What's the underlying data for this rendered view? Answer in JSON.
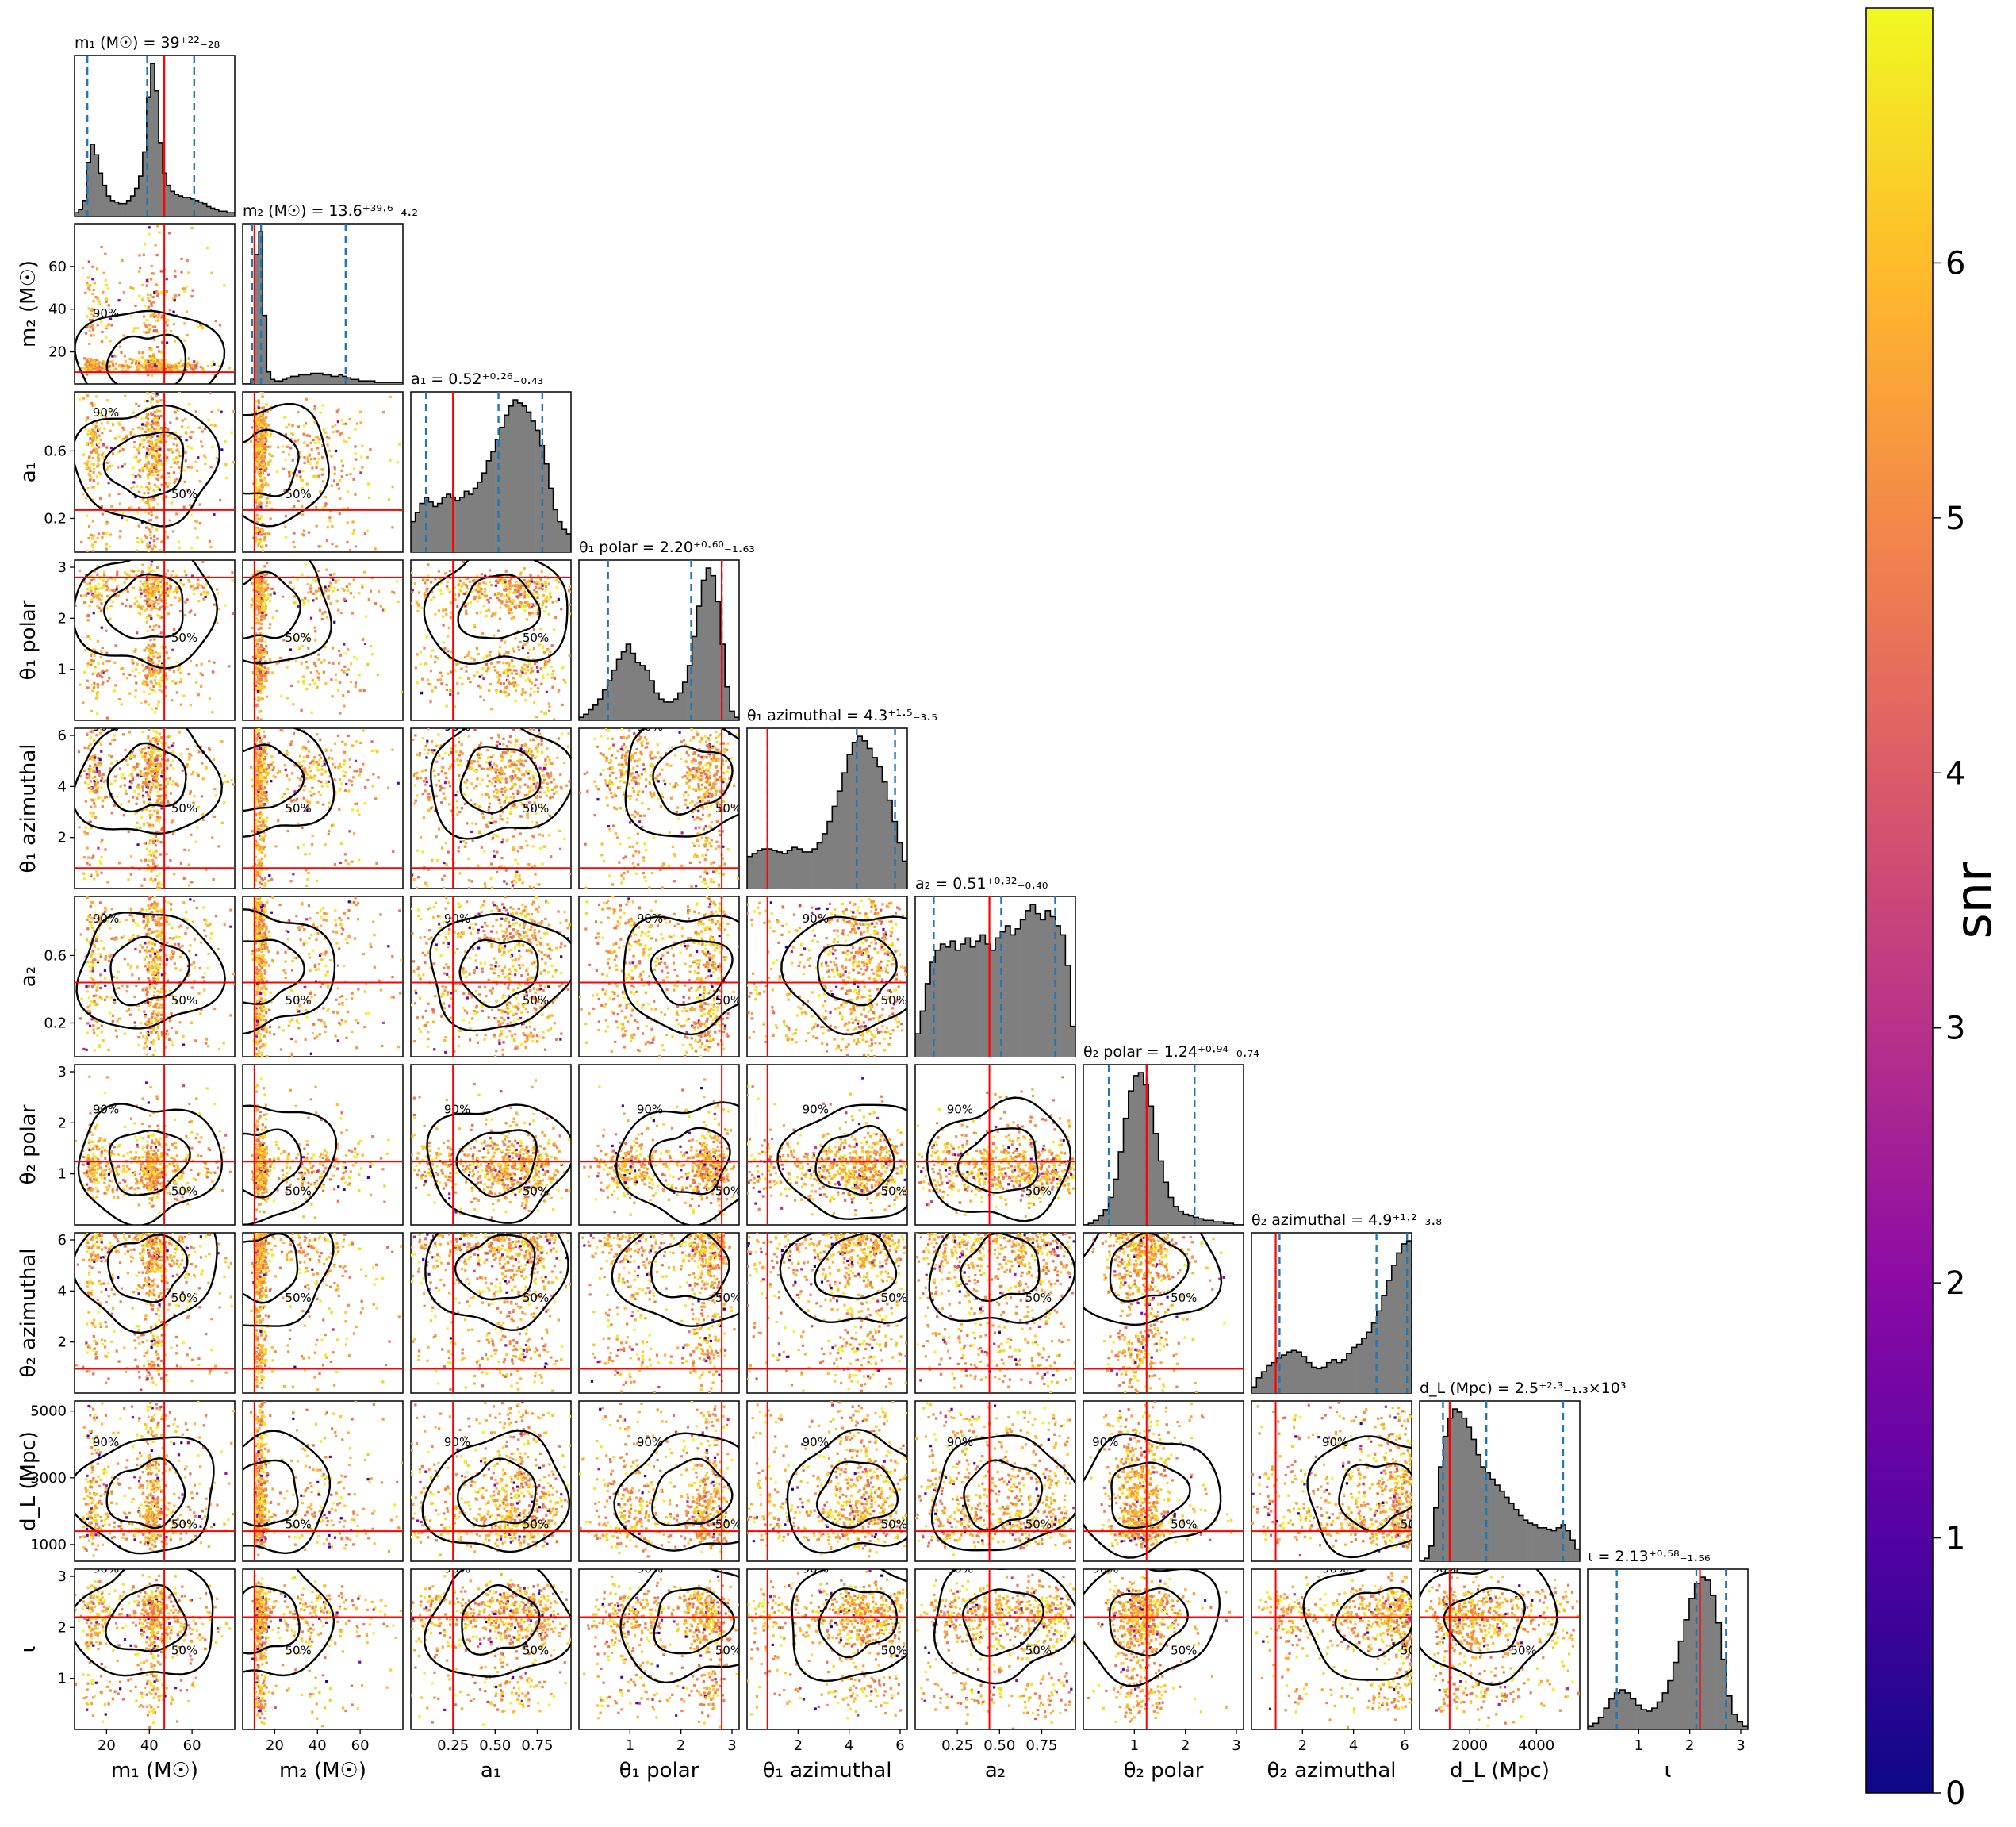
{
  "chart_data": {
    "type": "corner",
    "colorbar": {
      "label": "snr",
      "range": [
        0,
        7
      ],
      "ticks": [
        "0",
        "1",
        "2",
        "3",
        "4",
        "5",
        "6"
      ],
      "colormap": [
        "#0d0887",
        "#5302a3",
        "#8b0aa5",
        "#b83289",
        "#db5c68",
        "#f48849",
        "#febc2a",
        "#f0f921"
      ]
    },
    "colors": {
      "histogram": "#7f7f7f",
      "truth": "#ff0000",
      "credible_interval": "#1f77b4",
      "contour": "#000000"
    },
    "contour_labels": [
      "50%",
      "90%"
    ],
    "parameters": [
      {
        "name": "m1",
        "axis_label": "m₁ (M☉)",
        "title": "m₁ (M☉) = 39⁺²²₋₂₈",
        "range": [
          5,
          80
        ],
        "ticks": [
          20,
          40,
          60
        ],
        "tick_labels": [
          "20",
          "40",
          "60"
        ],
        "truth": 47,
        "median": 39,
        "lower": 11,
        "upper": 61
      },
      {
        "name": "m2",
        "axis_label": "m₂ (M☉)",
        "title": "m₂ (M☉) = 13.6⁺³⁹·⁶₋₄.₂",
        "range": [
          5,
          80
        ],
        "ticks": [
          20,
          40,
          60
        ],
        "tick_labels": [
          "20",
          "40",
          "60"
        ],
        "truth": 10.5,
        "median": 13.6,
        "lower": 9.4,
        "upper": 53.2
      },
      {
        "name": "a1",
        "axis_label": "a₁",
        "title": "a₁ = 0.52⁺⁰·²⁶₋₀.₄₃",
        "range": [
          0,
          0.95
        ],
        "ticks": [
          0.25,
          0.5,
          0.75
        ],
        "tick_labels": [
          "0.25",
          "0.50",
          "0.75"
        ],
        "y_ticks": [
          0.2,
          0.6
        ],
        "y_tick_labels": [
          "0.2",
          "0.6"
        ],
        "truth": 0.25,
        "median": 0.52,
        "lower": 0.09,
        "upper": 0.78
      },
      {
        "name": "theta1_polar",
        "axis_label": "θ₁ polar",
        "title": "θ₁ polar = 2.20⁺⁰·⁶⁰₋₁.₆₃",
        "range": [
          0,
          3.14
        ],
        "ticks": [
          1,
          2,
          3
        ],
        "tick_labels": [
          "1",
          "2",
          "3"
        ],
        "truth": 2.8,
        "median": 2.2,
        "lower": 0.57,
        "upper": 2.8
      },
      {
        "name": "theta1_azimuthal",
        "axis_label": "θ₁ azimuthal",
        "title": "θ₁ azimuthal = 4.3⁺¹·⁵₋₃.₅",
        "range": [
          0,
          6.28
        ],
        "ticks": [
          2,
          4,
          6
        ],
        "tick_labels": [
          "2",
          "4",
          "6"
        ],
        "truth": 0.8,
        "median": 4.3,
        "lower": 0.8,
        "upper": 5.8
      },
      {
        "name": "a2",
        "axis_label": "a₂",
        "title": "a₂ = 0.51⁺⁰·³²₋₀.₄₀",
        "range": [
          0,
          0.95
        ],
        "ticks": [
          0.25,
          0.5,
          0.75
        ],
        "tick_labels": [
          "0.25",
          "0.50",
          "0.75"
        ],
        "y_ticks": [
          0.2,
          0.6
        ],
        "y_tick_labels": [
          "0.2",
          "0.6"
        ],
        "truth": 0.44,
        "median": 0.51,
        "lower": 0.11,
        "upper": 0.83
      },
      {
        "name": "theta2_polar",
        "axis_label": "θ₂ polar",
        "title": "θ₂ polar = 1.24⁺⁰·⁹⁴₋₀.₇₄",
        "range": [
          0,
          3.14
        ],
        "ticks": [
          1,
          2,
          3
        ],
        "tick_labels": [
          "1",
          "2",
          "3"
        ],
        "truth": 1.24,
        "median": 1.24,
        "lower": 0.5,
        "upper": 2.18
      },
      {
        "name": "theta2_azimuthal",
        "axis_label": "θ₂ azimuthal",
        "title": "θ₂ azimuthal = 4.9⁺¹·²₋₃.₈",
        "range": [
          0,
          6.28
        ],
        "ticks": [
          2,
          4,
          6
        ],
        "tick_labels": [
          "2",
          "4",
          "6"
        ],
        "truth": 0.95,
        "median": 4.9,
        "lower": 1.1,
        "upper": 6.1
      },
      {
        "name": "dL",
        "axis_label": "d_L (Mpc)",
        "title": "d_L (Mpc) = 2.5⁺²·³₋₁.₃×10³",
        "range": [
          500,
          5300
        ],
        "ticks": [
          2000,
          4000
        ],
        "tick_labels": [
          "2000",
          "4000"
        ],
        "y_ticks": [
          1000,
          3000,
          5000
        ],
        "y_tick_labels": [
          "1000",
          "3000",
          "5000"
        ],
        "truth": 1400,
        "median": 2500,
        "lower": 1200,
        "upper": 4800
      },
      {
        "name": "iota",
        "axis_label": "ι",
        "title": "ι = 2.13⁺⁰·⁵⁸₋₁.₅₆",
        "range": [
          0,
          3.14
        ],
        "ticks": [
          1,
          2,
          3
        ],
        "tick_labels": [
          "1",
          "2",
          "3"
        ],
        "truth": 2.2,
        "median": 2.13,
        "lower": 0.57,
        "upper": 2.71
      }
    ],
    "histograms": [
      [
        0.02,
        0.04,
        0.1,
        0.35,
        0.47,
        0.4,
        0.28,
        0.2,
        0.13,
        0.1,
        0.09,
        0.08,
        0.08,
        0.1,
        0.13,
        0.18,
        0.26,
        0.42,
        0.78,
        1.0,
        0.82,
        0.48,
        0.28,
        0.2,
        0.16,
        0.14,
        0.13,
        0.12,
        0.12,
        0.11,
        0.1,
        0.09,
        0.08,
        0.06,
        0.05,
        0.04,
        0.03,
        0.03,
        0.02,
        0.02
      ],
      [
        0.0,
        0.0,
        0.03,
        0.85,
        1.0,
        0.45,
        0.08,
        0.03,
        0.02,
        0.02,
        0.03,
        0.04,
        0.05,
        0.05,
        0.06,
        0.06,
        0.06,
        0.07,
        0.07,
        0.07,
        0.06,
        0.06,
        0.05,
        0.05,
        0.06,
        0.05,
        0.04,
        0.03,
        0.03,
        0.02,
        0.02,
        0.02,
        0.02,
        0.01,
        0.01,
        0.01,
        0.01,
        0.01,
        0.01,
        0.01
      ],
      [
        0.2,
        0.26,
        0.32,
        0.36,
        0.33,
        0.3,
        0.32,
        0.36,
        0.38,
        0.36,
        0.34,
        0.36,
        0.4,
        0.38,
        0.42,
        0.46,
        0.52,
        0.6,
        0.66,
        0.74,
        0.82,
        0.9,
        0.96,
        1.0,
        0.98,
        0.96,
        0.92,
        0.86,
        0.8,
        0.7,
        0.58,
        0.42,
        0.28,
        0.2,
        0.15,
        0.12
      ],
      [
        0.02,
        0.04,
        0.07,
        0.1,
        0.14,
        0.2,
        0.26,
        0.33,
        0.4,
        0.45,
        0.5,
        0.44,
        0.38,
        0.36,
        0.33,
        0.26,
        0.18,
        0.14,
        0.12,
        0.12,
        0.14,
        0.18,
        0.25,
        0.36,
        0.55,
        0.75,
        0.92,
        1.0,
        0.95,
        0.78,
        0.5,
        0.22,
        0.06,
        0.02
      ],
      [
        0.21,
        0.23,
        0.25,
        0.26,
        0.26,
        0.25,
        0.24,
        0.23,
        0.25,
        0.27,
        0.26,
        0.24,
        0.24,
        0.26,
        0.3,
        0.36,
        0.44,
        0.54,
        0.64,
        0.76,
        0.88,
        0.96,
        1.0,
        0.97,
        0.92,
        0.86,
        0.8,
        0.7,
        0.58,
        0.44,
        0.3,
        0.18
      ],
      [
        0.15,
        0.3,
        0.48,
        0.62,
        0.7,
        0.74,
        0.72,
        0.76,
        0.7,
        0.74,
        0.78,
        0.72,
        0.76,
        0.8,
        0.74,
        0.7,
        0.78,
        0.82,
        0.86,
        0.8,
        0.84,
        0.9,
        0.96,
        1.0,
        0.94,
        0.9,
        0.96,
        0.92,
        0.86,
        0.8,
        0.6,
        0.2
      ],
      [
        0.0,
        0.01,
        0.03,
        0.06,
        0.1,
        0.18,
        0.3,
        0.48,
        0.7,
        0.88,
        0.98,
        1.0,
        0.92,
        0.78,
        0.6,
        0.42,
        0.28,
        0.18,
        0.12,
        0.09,
        0.07,
        0.06,
        0.05,
        0.04,
        0.03,
        0.03,
        0.02,
        0.02,
        0.01,
        0.01,
        0.0,
        0.0
      ],
      [
        0.04,
        0.1,
        0.14,
        0.18,
        0.2,
        0.23,
        0.25,
        0.27,
        0.28,
        0.27,
        0.24,
        0.2,
        0.17,
        0.16,
        0.17,
        0.2,
        0.22,
        0.2,
        0.22,
        0.26,
        0.3,
        0.32,
        0.36,
        0.4,
        0.46,
        0.54,
        0.64,
        0.74,
        0.84,
        0.92,
        0.98,
        1.0
      ],
      [
        0.0,
        0.02,
        0.1,
        0.35,
        0.62,
        0.82,
        0.94,
        1.0,
        0.98,
        0.94,
        0.88,
        0.8,
        0.7,
        0.62,
        0.58,
        0.54,
        0.5,
        0.46,
        0.42,
        0.38,
        0.34,
        0.3,
        0.27,
        0.25,
        0.24,
        0.22,
        0.22,
        0.21,
        0.2,
        0.22,
        0.24,
        0.2,
        0.14,
        0.08
      ],
      [
        0.02,
        0.04,
        0.08,
        0.14,
        0.2,
        0.24,
        0.26,
        0.24,
        0.2,
        0.16,
        0.13,
        0.12,
        0.14,
        0.18,
        0.24,
        0.32,
        0.44,
        0.58,
        0.72,
        0.86,
        0.96,
        1.0,
        0.98,
        0.88,
        0.7,
        0.46,
        0.22,
        0.1,
        0.05,
        0.02
      ]
    ]
  }
}
